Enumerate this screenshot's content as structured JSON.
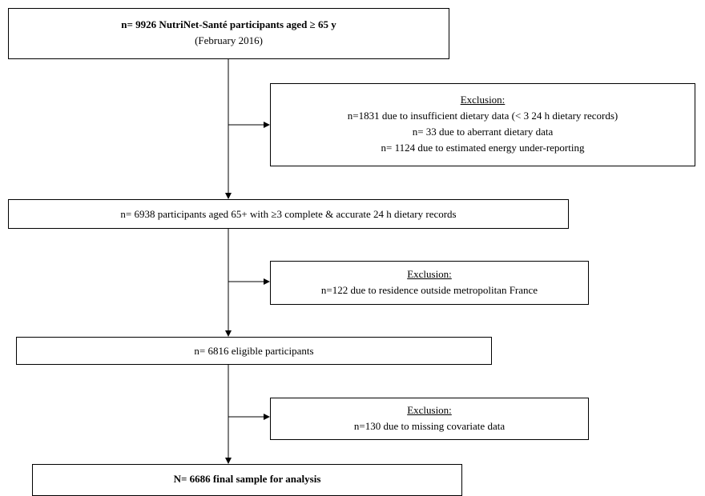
{
  "boxes": {
    "start": {
      "line1": "n= 9926 NutriNet-Santé participants aged ≥ 65 y",
      "line2": "(February 2016)"
    },
    "exclusion1": {
      "heading": "Exclusion:",
      "lines": [
        "n=1831 due to insufficient dietary data (< 3 24 h dietary records)",
        "n= 33 due to aberrant dietary data",
        "n= 1124 due to estimated energy under-reporting"
      ]
    },
    "step2": {
      "line1": "n= 6938 participants aged 65+ with ≥3 complete & accurate 24 h dietary records"
    },
    "exclusion2": {
      "heading": "Exclusion:",
      "lines": [
        "n=122 due to residence outside metropolitan France"
      ]
    },
    "step3": {
      "line1": "n= 6816 eligible participants"
    },
    "exclusion3": {
      "heading": "Exclusion:",
      "lines": [
        "n=130 due to missing covariate data"
      ]
    },
    "final": {
      "line1": "N= 6686 final sample for analysis"
    }
  }
}
